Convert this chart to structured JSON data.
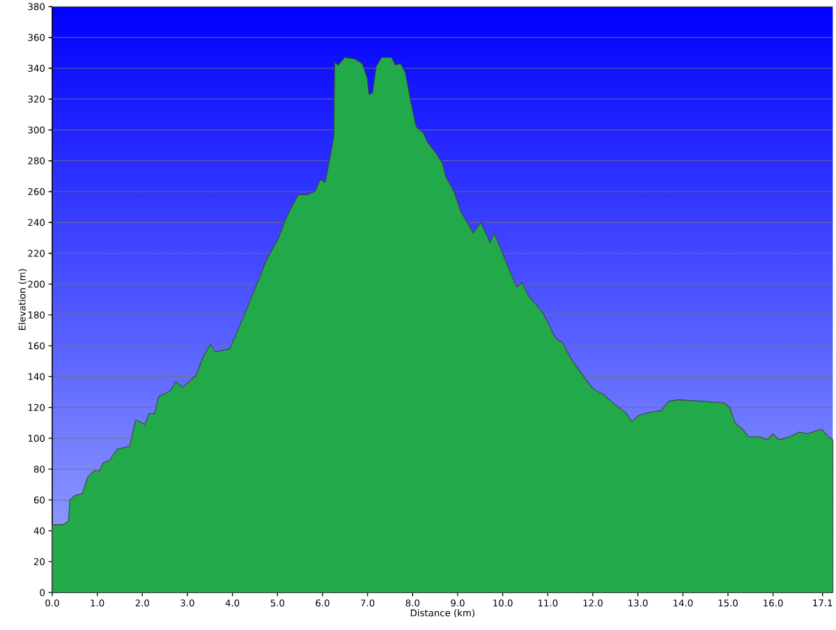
{
  "chart_data": {
    "type": "area",
    "xlabel": "Distance (km)",
    "ylabel": "Elevation (m)",
    "x": [
      0,
      0.23,
      0.36,
      0.39,
      0.51,
      0.66,
      0.79,
      0.93,
      1.05,
      1.13,
      1.28,
      1.44,
      1.72,
      1.85,
      2.06,
      2.15,
      2.27,
      2.36,
      2.63,
      2.74,
      2.89,
      3.2,
      3.35,
      3.51,
      3.62,
      3.94,
      4.06,
      4.22,
      4.53,
      4.76,
      5.01,
      5.21,
      5.46,
      5.67,
      5.83,
      5.95,
      6.06,
      6.2,
      6.25,
      6.27,
      6.35,
      6.49,
      6.72,
      6.88,
      6.99,
      7.03,
      7.11,
      7.19,
      7.31,
      7.53,
      7.62,
      7.73,
      7.84,
      7.96,
      8.08,
      8.24,
      8.33,
      8.52,
      8.67,
      8.73,
      8.92,
      9.07,
      9.35,
      9.51,
      9.72,
      9.81,
      9.97,
      10.12,
      10.31,
      10.43,
      10.56,
      10.9,
      11.17,
      11.33,
      11.51,
      11.82,
      12.01,
      12.26,
      12.44,
      12.72,
      12.87,
      13.03,
      13.29,
      13.52,
      13.68,
      13.91,
      14.45,
      14.91,
      15.04,
      15.16,
      15.32,
      15.46,
      15.72,
      15.87,
      16.0,
      16.12,
      16.37,
      16.58,
      16.77,
      17.08,
      17.23,
      17.33
    ],
    "series": [
      {
        "color": "#22aa4a",
        "values": [
          44,
          44,
          46,
          60,
          63,
          64,
          75,
          79,
          79,
          84,
          86,
          93,
          95,
          112,
          109,
          116,
          116,
          127,
          131,
          137,
          133,
          141,
          153,
          161,
          156,
          158,
          166,
          177,
          199,
          216,
          229,
          244,
          258,
          258,
          260,
          268,
          266,
          287,
          296,
          344,
          342,
          347,
          346,
          343,
          334,
          323,
          324,
          341,
          347,
          347,
          342,
          343,
          337,
          318,
          302,
          298,
          292,
          285,
          278,
          270,
          260,
          247,
          233,
          240,
          227,
          233,
          222,
          211,
          198,
          201,
          193,
          181,
          165,
          162,
          152,
          139,
          132,
          128,
          123,
          117,
          111,
          115,
          117,
          118,
          124,
          125,
          124,
          123,
          120,
          110,
          106,
          101,
          101,
          99,
          103,
          99,
          101,
          104,
          103,
          106,
          101,
          99
        ]
      }
    ],
    "xlim": [
      0,
      17.33
    ],
    "ylim": [
      0,
      380
    ],
    "xticks": [
      {
        "value": 0,
        "label": "0.0"
      },
      {
        "value": 1,
        "label": "1.0"
      },
      {
        "value": 2,
        "label": "2.0"
      },
      {
        "value": 3,
        "label": "3.0"
      },
      {
        "value": 4,
        "label": "4.0"
      },
      {
        "value": 5,
        "label": "5.0"
      },
      {
        "value": 6,
        "label": "6.0"
      },
      {
        "value": 7,
        "label": "7.0"
      },
      {
        "value": 8,
        "label": "8.0"
      },
      {
        "value": 9,
        "label": "9.0"
      },
      {
        "value": 10,
        "label": "10.0"
      },
      {
        "value": 11,
        "label": "11.0"
      },
      {
        "value": 12,
        "label": "12.0"
      },
      {
        "value": 13,
        "label": "13.0"
      },
      {
        "value": 14,
        "label": "14.0"
      },
      {
        "value": 15,
        "label": "15.0"
      },
      {
        "value": 16,
        "label": "16.0"
      },
      {
        "value": 17.1,
        "label": "17.1"
      }
    ],
    "yticks": [
      0,
      20,
      40,
      60,
      80,
      100,
      120,
      140,
      160,
      180,
      200,
      220,
      240,
      260,
      280,
      300,
      320,
      340,
      360,
      380
    ],
    "grid": "y"
  }
}
